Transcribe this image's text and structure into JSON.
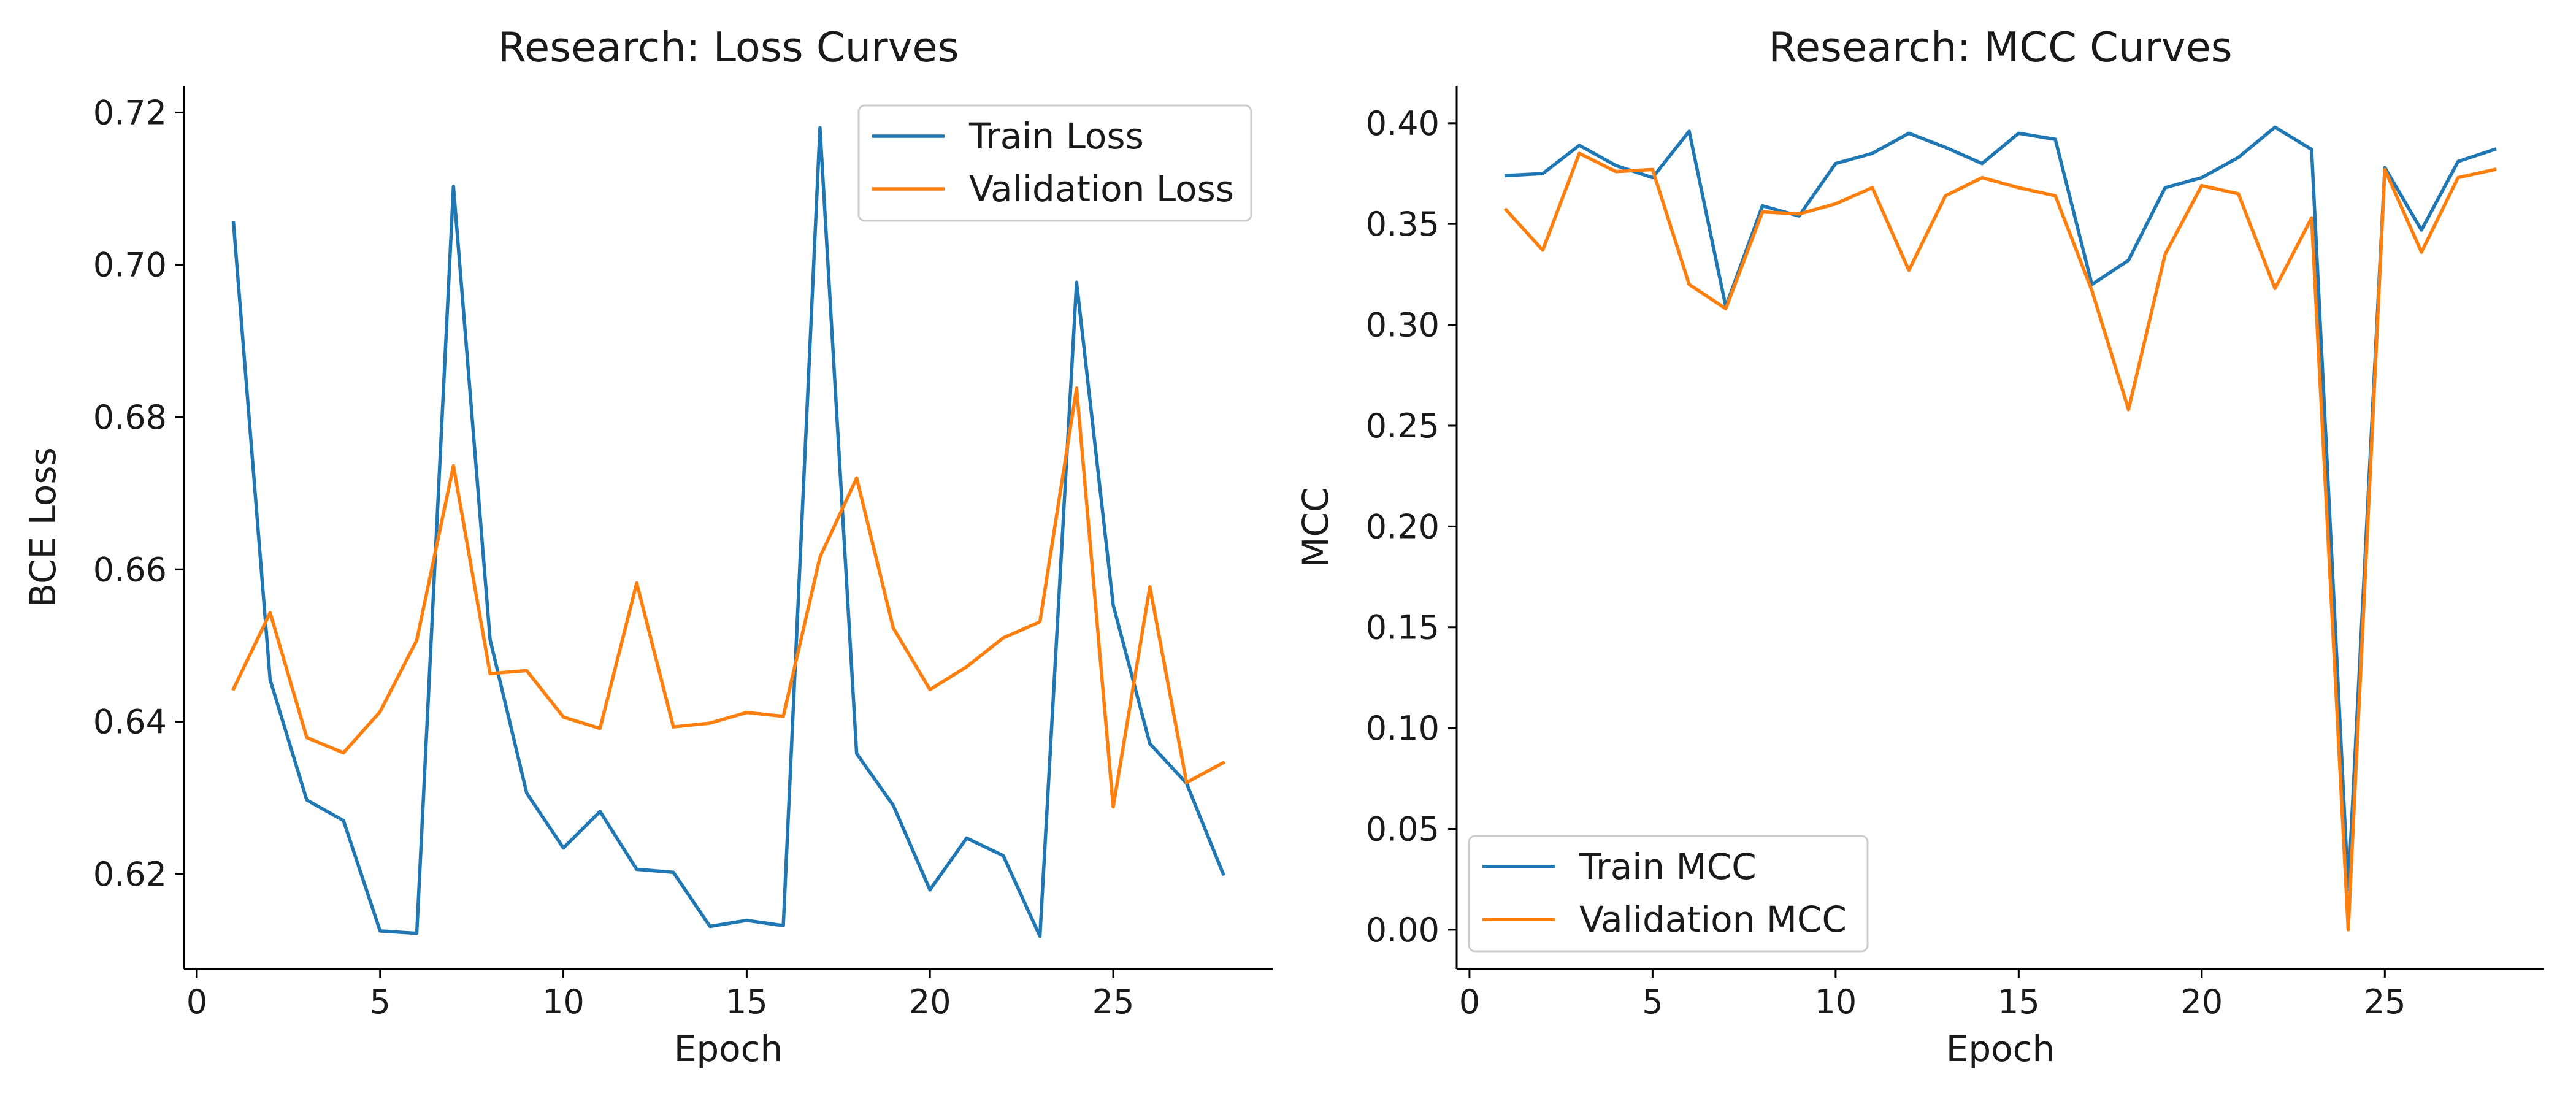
{
  "chart_data": [
    {
      "type": "line",
      "title": "Research: Loss Curves",
      "xlabel": "Epoch",
      "ylabel": "BCE Loss",
      "xlim": [
        -0.35,
        29.35
      ],
      "ylim": [
        0.6075,
        0.7235
      ],
      "xticks": [
        0,
        5,
        10,
        15,
        20,
        25
      ],
      "yticks": [
        0.62,
        0.64,
        0.66,
        0.68,
        0.7,
        0.72
      ],
      "ytick_decimals": 2,
      "grid": false,
      "legend_position": "upper right",
      "x": [
        1,
        2,
        3,
        4,
        5,
        6,
        7,
        8,
        9,
        10,
        11,
        12,
        13,
        14,
        15,
        16,
        17,
        18,
        19,
        20,
        21,
        22,
        23,
        24,
        25,
        26,
        27,
        28
      ],
      "series": [
        {
          "name": "Train Loss",
          "color": "#1f77b4",
          "values": [
            0.7055,
            0.6455,
            0.6297,
            0.627,
            0.6125,
            0.6122,
            0.7103,
            0.6508,
            0.6306,
            0.6234,
            0.6282,
            0.6206,
            0.6202,
            0.6131,
            0.6139,
            0.6132,
            0.718,
            0.6358,
            0.629,
            0.6179,
            0.6247,
            0.6224,
            0.6118,
            0.6977,
            0.6553,
            0.6371,
            0.6319,
            0.62
          ]
        },
        {
          "name": "Validation Loss",
          "color": "#ff7f0e",
          "values": [
            0.6443,
            0.6543,
            0.6379,
            0.6359,
            0.6413,
            0.6507,
            0.6736,
            0.6463,
            0.6467,
            0.6406,
            0.6391,
            0.6582,
            0.6393,
            0.6398,
            0.6412,
            0.6407,
            0.6616,
            0.672,
            0.6523,
            0.6442,
            0.6472,
            0.651,
            0.6531,
            0.6838,
            0.6288,
            0.6577,
            0.632,
            0.6346
          ]
        }
      ]
    },
    {
      "type": "line",
      "title": "Research: MCC Curves",
      "xlabel": "Epoch",
      "ylabel": "MCC",
      "xlim": [
        -0.35,
        29.35
      ],
      "ylim": [
        -0.0195,
        0.4185
      ],
      "xticks": [
        0,
        5,
        10,
        15,
        20,
        25
      ],
      "yticks": [
        0.0,
        0.05,
        0.1,
        0.15,
        0.2,
        0.25,
        0.3,
        0.35,
        0.4
      ],
      "ytick_decimals": 2,
      "grid": false,
      "legend_position": "lower left",
      "x": [
        1,
        2,
        3,
        4,
        5,
        6,
        7,
        8,
        9,
        10,
        11,
        12,
        13,
        14,
        15,
        16,
        17,
        18,
        19,
        20,
        21,
        22,
        23,
        24,
        25,
        26,
        27,
        28
      ],
      "series": [
        {
          "name": "Train MCC",
          "color": "#1f77b4",
          "values": [
            0.374,
            0.375,
            0.389,
            0.379,
            0.373,
            0.396,
            0.309,
            0.359,
            0.354,
            0.38,
            0.385,
            0.395,
            0.388,
            0.38,
            0.395,
            0.392,
            0.32,
            0.332,
            0.368,
            0.373,
            0.383,
            0.398,
            0.387,
            0.02,
            0.378,
            0.347,
            0.381,
            0.387
          ]
        },
        {
          "name": "Validation MCC",
          "color": "#ff7f0e",
          "values": [
            0.357,
            0.337,
            0.385,
            0.376,
            0.377,
            0.32,
            0.308,
            0.356,
            0.355,
            0.36,
            0.368,
            0.327,
            0.364,
            0.373,
            0.368,
            0.364,
            0.317,
            0.258,
            0.335,
            0.369,
            0.365,
            0.318,
            0.353,
            0.0,
            0.377,
            0.336,
            0.373,
            0.377
          ]
        }
      ]
    }
  ]
}
